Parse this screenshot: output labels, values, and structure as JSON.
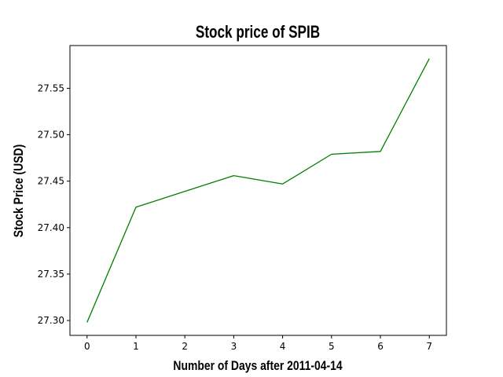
{
  "chart_data": {
    "type": "line",
    "title": "Stock price of SPIB",
    "xlabel": "Number of Days after 2011-04-14",
    "ylabel": "Stock Price (USD)",
    "x": [
      0,
      1,
      2,
      3,
      4,
      5,
      6,
      7
    ],
    "series": [
      {
        "values": [
          27.298,
          27.422,
          27.439,
          27.456,
          27.447,
          27.479,
          27.482,
          27.582
        ],
        "color": "#008000"
      }
    ],
    "xticks": [
      "0",
      "1",
      "2",
      "3",
      "4",
      "5",
      "6",
      "7"
    ],
    "yticks": [
      "27.30",
      "27.35",
      "27.40",
      "27.45",
      "27.50",
      "27.55"
    ],
    "xlim": [
      -0.35,
      7.35
    ],
    "ylim": [
      27.284,
      27.596
    ],
    "grid": false,
    "legend": false
  }
}
